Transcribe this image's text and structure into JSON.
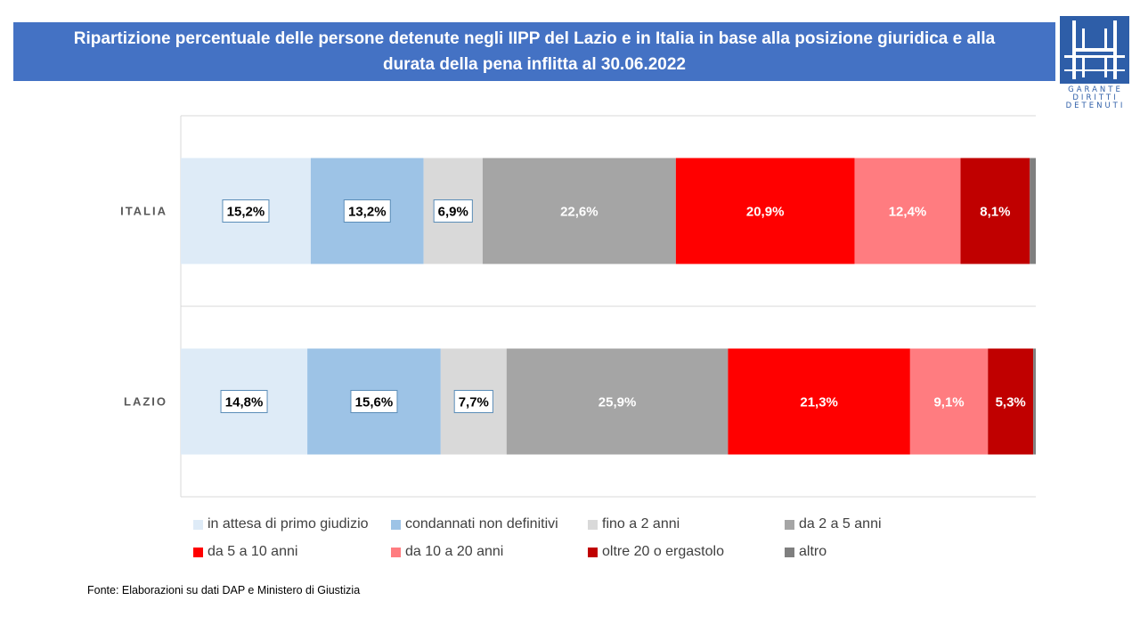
{
  "title": {
    "line1": "Ripartizione percentuale delle persone detenute negli IIPP del Lazio e in Italia in base alla posizione giuridica e alla",
    "line2": "durata della pena inflitta al 30.06.2022"
  },
  "logo": {
    "icon": "garante-logo-icon",
    "line1": "GARANTE",
    "line2": "DIRITTI",
    "line3": "DETENUTI",
    "color": "#2e5ea8"
  },
  "chart_data": {
    "type": "bar",
    "orientation": "horizontal",
    "stacked": "percent",
    "categories": [
      "ITALIA",
      "LAZIO"
    ],
    "xlim": [
      0,
      100
    ],
    "grid": false,
    "legend_position": "bottom",
    "label_boxed_series": [
      "in attesa di primo giudizio",
      "condannati non definitivi",
      "fino a 2 anni"
    ],
    "series": [
      {
        "name": "in attesa di primo giudizio",
        "color": "#deebf7",
        "label_color": "#000000",
        "values": [
          15.2,
          14.8
        ],
        "labels": [
          "15,2%",
          "14,8%"
        ]
      },
      {
        "name": "condannati non definitivi",
        "color": "#9dc3e6",
        "label_color": "#000000",
        "values": [
          13.2,
          15.6
        ],
        "labels": [
          "13,2%",
          "15,6%"
        ]
      },
      {
        "name": "fino a 2 anni",
        "color": "#d9d9d9",
        "label_color": "#000000",
        "values": [
          6.9,
          7.7
        ],
        "labels": [
          "6,9%",
          "7,7%"
        ]
      },
      {
        "name": "da 2 a 5 anni",
        "color": "#a5a5a5",
        "label_color": "#ffffff",
        "values": [
          22.6,
          25.9
        ],
        "labels": [
          "22,6%",
          "25,9%"
        ]
      },
      {
        "name": "da 5 a 10 anni",
        "color": "#ff0000",
        "label_color": "#ffffff",
        "values": [
          20.9,
          21.3
        ],
        "labels": [
          "20,9%",
          "21,3%"
        ]
      },
      {
        "name": "da 10 a 20 anni",
        "color": "#ff7c80",
        "label_color": "#ffffff",
        "values": [
          12.4,
          9.1
        ],
        "labels": [
          "12,4%",
          "9,1%"
        ]
      },
      {
        "name": "oltre 20 o ergastolo",
        "color": "#c00000",
        "label_color": "#ffffff",
        "values": [
          8.1,
          5.3
        ],
        "labels": [
          "8,1%",
          "5,3%"
        ]
      },
      {
        "name": "altro",
        "color": "#7f7f7f",
        "label_color": "#ffffff",
        "values": [
          0.7,
          0.3
        ],
        "labels": [
          "",
          ""
        ]
      }
    ]
  },
  "source": "Fonte:  Elaborazioni su dati DAP e Ministero di Giustizia"
}
